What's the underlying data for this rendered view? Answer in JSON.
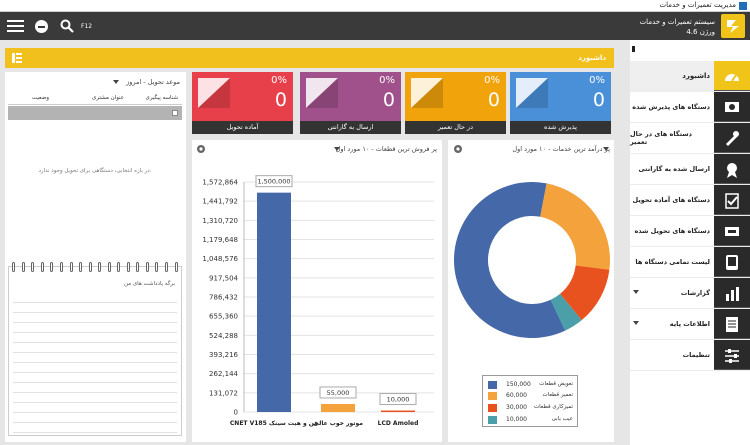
{
  "window": {
    "title": "مدیریت تعمیرات و خدمات"
  },
  "header": {
    "app_title": "سیستم تعمیرات و خدمات",
    "version": "ورژن 4.6",
    "shortcut": "F12"
  },
  "sidebar": {
    "items": [
      {
        "label": "داشبورد",
        "icon": "dashboard-gauge-icon",
        "active": true
      },
      {
        "label": "دستگاه های پذیرش شده",
        "icon": "received-devices-icon"
      },
      {
        "label": "دستگاه های در حال تعمیر",
        "icon": "wrench-tools-icon"
      },
      {
        "label": "ارسال شده به گارانتی",
        "icon": "warranty-badge-icon"
      },
      {
        "label": "دستگاه های آماده تحویل",
        "icon": "checklist-icon"
      },
      {
        "label": "دستگاه های تحویل شده",
        "icon": "delivered-devices-icon"
      },
      {
        "label": "لیست تمامی دستگاه ها",
        "icon": "device-list-icon"
      },
      {
        "label": "گزارشات",
        "icon": "reports-icon",
        "expandable": true
      },
      {
        "label": "اطلاعات پایه",
        "icon": "base-info-icon",
        "expandable": true
      },
      {
        "label": "تنظیمات",
        "icon": "settings-sliders-icon"
      }
    ]
  },
  "dashboard": {
    "title": "داشبورد"
  },
  "cards": [
    {
      "label": "پذیرش شده",
      "percent": "0%",
      "value": "0",
      "color": "#4a90d9"
    },
    {
      "label": "در حال تعمیر",
      "percent": "0%",
      "value": "0",
      "color": "#f0a30a"
    },
    {
      "label": "ارسال به گارانتی",
      "percent": "0%",
      "value": "0",
      "color": "#a0508a"
    },
    {
      "label": "آماده تحویل",
      "percent": "0%",
      "value": "0",
      "color": "#e8404a"
    }
  ],
  "delivery": {
    "title": "موعد تحویل - امروز",
    "columns": [
      "شناسه پیگیری",
      "عنوان مشتری",
      "وضعیت"
    ],
    "empty_message": "در بازه انتخابی، دستگاهی برای تحویل وجود ندارد.",
    "notes_label": "برگه یادداشت های من"
  },
  "chart_data": [
    {
      "type": "pie",
      "title": "پر درآمد ترین خدمات - ۱۰ مورد اول",
      "categories": [
        "تعویض قطعات",
        "تعمیر قطعات",
        "تمیزکاری قطعات",
        "عیب یابی"
      ],
      "values": [
        150000,
        60000,
        30000,
        10000
      ],
      "colors": [
        "#4468a8",
        "#f4a23c",
        "#e8521f",
        "#4a9fa8"
      ],
      "legend": [
        "150,000",
        "60,000",
        "30,000",
        "10,000"
      ]
    },
    {
      "type": "bar",
      "title": "پر فروش ترین قطعات - ۱۰ مورد اول",
      "categories": [
        "CNET V185 فن و هیت سینک",
        "موتور خوب عالی",
        "LCD Amoled"
      ],
      "values": [
        1500000,
        55000,
        10000
      ],
      "data_labels": [
        "1,500,000",
        "55,000",
        "10,000"
      ],
      "colors": [
        "#4468a8",
        "#f4a23c",
        "#e8521f"
      ],
      "yticks": [
        "1,572,864",
        "1,441,792",
        "1,310,720",
        "1,179,648",
        "1,048,576",
        "917,504",
        "786,432",
        "655,360",
        "524,288",
        "393,216",
        "262,144",
        "131,072",
        "0"
      ],
      "ylim": [
        0,
        1572864
      ]
    }
  ]
}
